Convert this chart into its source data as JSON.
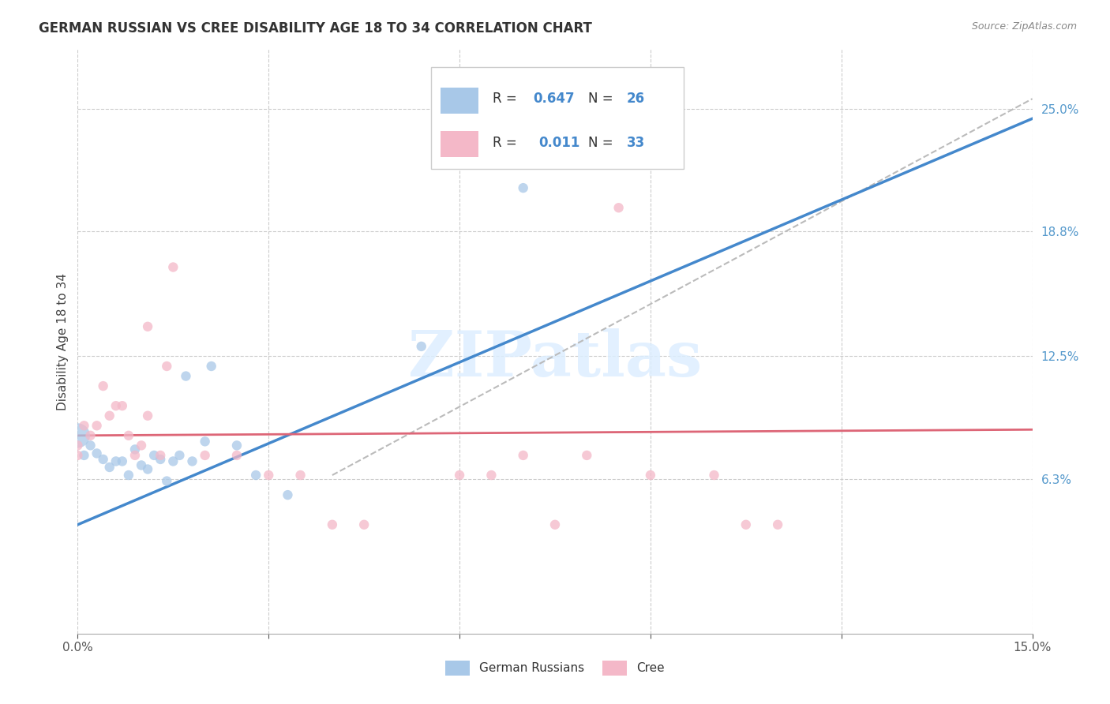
{
  "title": "GERMAN RUSSIAN VS CREE DISABILITY AGE 18 TO 34 CORRELATION CHART",
  "source": "Source: ZipAtlas.com",
  "ylabel": "Disability Age 18 to 34",
  "xlim": [
    0.0,
    0.15
  ],
  "ylim": [
    -0.015,
    0.28
  ],
  "ytick_labels": [
    "6.3%",
    "12.5%",
    "18.8%",
    "25.0%"
  ],
  "ytick_positions": [
    0.063,
    0.125,
    0.188,
    0.25
  ],
  "color_blue": "#a8c8e8",
  "color_pink": "#f4b8c8",
  "color_line_blue": "#4488cc",
  "color_line_pink": "#dd6677",
  "watermark_text": "ZIPatlas",
  "german_russian_x": [
    0.001,
    0.002,
    0.003,
    0.004,
    0.005,
    0.006,
    0.007,
    0.008,
    0.009,
    0.01,
    0.011,
    0.012,
    0.013,
    0.014,
    0.015,
    0.016,
    0.017,
    0.018,
    0.02,
    0.021,
    0.025,
    0.028,
    0.033,
    0.054,
    0.07,
    0.0
  ],
  "german_russian_y": [
    0.075,
    0.08,
    0.076,
    0.073,
    0.069,
    0.072,
    0.072,
    0.065,
    0.078,
    0.07,
    0.068,
    0.075,
    0.073,
    0.062,
    0.072,
    0.075,
    0.115,
    0.072,
    0.082,
    0.12,
    0.08,
    0.065,
    0.055,
    0.13,
    0.21,
    0.085
  ],
  "german_russian_size": [
    80,
    80,
    80,
    80,
    80,
    80,
    80,
    80,
    80,
    80,
    80,
    80,
    80,
    80,
    80,
    80,
    80,
    80,
    80,
    80,
    80,
    80,
    80,
    80,
    80,
    500
  ],
  "cree_x": [
    0.0,
    0.001,
    0.002,
    0.003,
    0.004,
    0.005,
    0.006,
    0.007,
    0.008,
    0.009,
    0.01,
    0.011,
    0.011,
    0.013,
    0.014,
    0.015,
    0.02,
    0.025,
    0.03,
    0.035,
    0.04,
    0.045,
    0.06,
    0.065,
    0.07,
    0.075,
    0.08,
    0.085,
    0.09,
    0.1,
    0.105,
    0.11,
    0.0
  ],
  "cree_y": [
    0.08,
    0.09,
    0.085,
    0.09,
    0.11,
    0.095,
    0.1,
    0.1,
    0.085,
    0.075,
    0.08,
    0.095,
    0.14,
    0.075,
    0.12,
    0.17,
    0.075,
    0.075,
    0.065,
    0.065,
    0.04,
    0.04,
    0.065,
    0.065,
    0.075,
    0.04,
    0.075,
    0.2,
    0.065,
    0.065,
    0.04,
    0.04,
    0.075
  ],
  "cree_size": [
    80,
    80,
    80,
    80,
    80,
    80,
    80,
    80,
    80,
    80,
    80,
    80,
    80,
    80,
    80,
    80,
    80,
    80,
    80,
    80,
    80,
    80,
    80,
    80,
    80,
    80,
    80,
    80,
    80,
    80,
    80,
    80,
    80
  ],
  "blue_line_x": [
    0.0,
    0.15
  ],
  "blue_line_y": [
    0.04,
    0.245
  ],
  "pink_line_x": [
    0.0,
    0.15
  ],
  "pink_line_y": [
    0.085,
    0.088
  ],
  "dash_line_x": [
    0.04,
    0.15
  ],
  "dash_line_y": [
    0.065,
    0.255
  ],
  "vgrid_x": [
    0.0,
    0.03,
    0.06,
    0.09,
    0.12,
    0.15
  ],
  "legend_blue_r": "0.647",
  "legend_blue_n": "26",
  "legend_pink_r": "0.011",
  "legend_pink_n": "33"
}
